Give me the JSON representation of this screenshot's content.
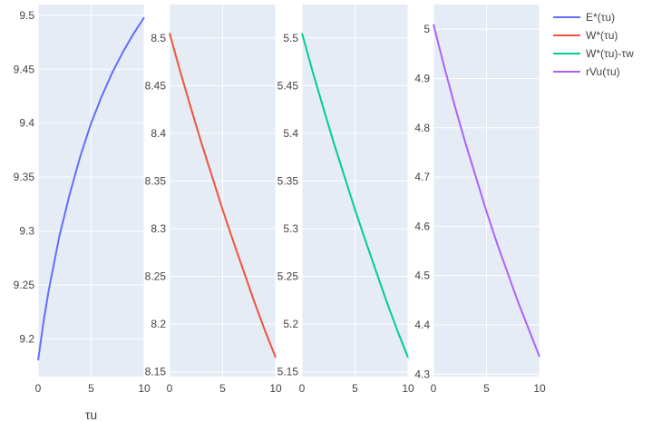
{
  "chart_data": [
    {
      "type": "line",
      "xlabel": "τu",
      "xlim": [
        0,
        10
      ],
      "ylim": [
        9.165,
        9.51
      ],
      "x_ticks": [
        0,
        5,
        10
      ],
      "y_ticks": [
        9.2,
        9.25,
        9.3,
        9.35,
        9.4,
        9.45,
        9.5
      ],
      "grid": true,
      "series": [
        {
          "name": "E*(τu)",
          "color": "#636efa",
          "x": [
            0,
            0.5,
            1,
            2,
            3,
            4,
            5,
            6,
            7,
            8,
            9,
            10
          ],
          "y": [
            9.18,
            9.215,
            9.245,
            9.295,
            9.335,
            9.37,
            9.4,
            9.425,
            9.447,
            9.466,
            9.483,
            9.498
          ]
        }
      ]
    },
    {
      "type": "line",
      "xlabel": "",
      "xlim": [
        0,
        10
      ],
      "ylim": [
        8.145,
        8.535
      ],
      "x_ticks": [
        0,
        5,
        10
      ],
      "y_ticks": [
        8.15,
        8.2,
        8.25,
        8.3,
        8.35,
        8.4,
        8.45,
        8.5
      ],
      "grid": true,
      "series": [
        {
          "name": "W*(τu)",
          "color": "#ef553b",
          "x": [
            0,
            1,
            2,
            3,
            4,
            5,
            6,
            7,
            8,
            9,
            10
          ],
          "y": [
            8.505,
            8.465,
            8.427,
            8.39,
            8.355,
            8.32,
            8.287,
            8.255,
            8.223,
            8.193,
            8.165
          ]
        }
      ]
    },
    {
      "type": "line",
      "xlabel": "",
      "xlim": [
        0,
        10
      ],
      "ylim": [
        5.145,
        5.535
      ],
      "x_ticks": [
        0,
        5,
        10
      ],
      "y_ticks": [
        5.15,
        5.2,
        5.25,
        5.3,
        5.35,
        5.4,
        5.45,
        5.5
      ],
      "grid": true,
      "series": [
        {
          "name": "W*(τu)-τw",
          "color": "#00cc96",
          "x": [
            0,
            1,
            2,
            3,
            4,
            5,
            6,
            7,
            8,
            9,
            10
          ],
          "y": [
            5.505,
            5.465,
            5.427,
            5.39,
            5.355,
            5.32,
            5.287,
            5.255,
            5.223,
            5.193,
            5.165
          ]
        }
      ]
    },
    {
      "type": "line",
      "xlabel": "",
      "xlim": [
        0,
        10
      ],
      "ylim": [
        4.295,
        5.05
      ],
      "x_ticks": [
        0,
        5,
        10
      ],
      "y_ticks": [
        4.3,
        4.4,
        4.5,
        4.6,
        4.7,
        4.8,
        4.9,
        5
      ],
      "grid": true,
      "series": [
        {
          "name": "rVu(τu)",
          "color": "#ab63fa",
          "x": [
            0,
            1,
            2,
            3,
            4,
            5,
            6,
            7,
            8,
            9,
            10
          ],
          "y": [
            5.01,
            4.925,
            4.845,
            4.77,
            4.7,
            4.63,
            4.565,
            4.505,
            4.445,
            4.39,
            4.335
          ]
        }
      ]
    }
  ],
  "legend": {
    "placement": "top-right",
    "items": [
      {
        "label": "E*(τu)",
        "color": "#636efa"
      },
      {
        "label": "W*(τu)",
        "color": "#ef553b"
      },
      {
        "label": "W*(τu)-τw",
        "color": "#00cc96"
      },
      {
        "label": "rVu(τu)",
        "color": "#ab63fa"
      }
    ]
  }
}
